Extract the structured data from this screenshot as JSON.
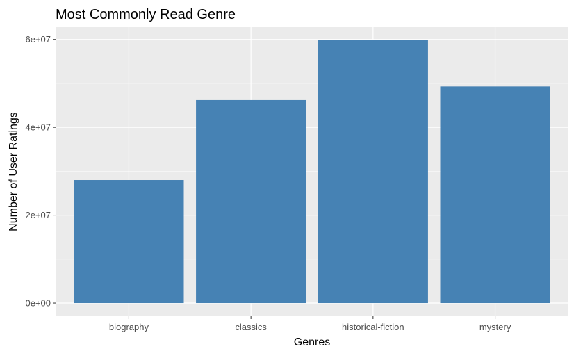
{
  "chart_data": {
    "type": "bar",
    "title": "Most Commonly Read Genre",
    "xlabel": "Genres",
    "ylabel": "Number of User Ratings",
    "categories": [
      "biography",
      "classics",
      "historical-fiction",
      "mystery"
    ],
    "values": [
      28000000,
      46200000,
      59800000,
      49300000
    ],
    "ylim": [
      -3000000,
      62800000
    ],
    "yticks": [
      0,
      20000000,
      40000000,
      60000000
    ],
    "ytick_labels": [
      "0e+00",
      "2e+07",
      "4e+07",
      "6e+07"
    ],
    "grid": true,
    "legend": "none",
    "colors": {
      "bar": "#4682B4",
      "panel": "#EBEBEB",
      "grid_major": "#FFFFFF",
      "tick": "#333333"
    }
  }
}
